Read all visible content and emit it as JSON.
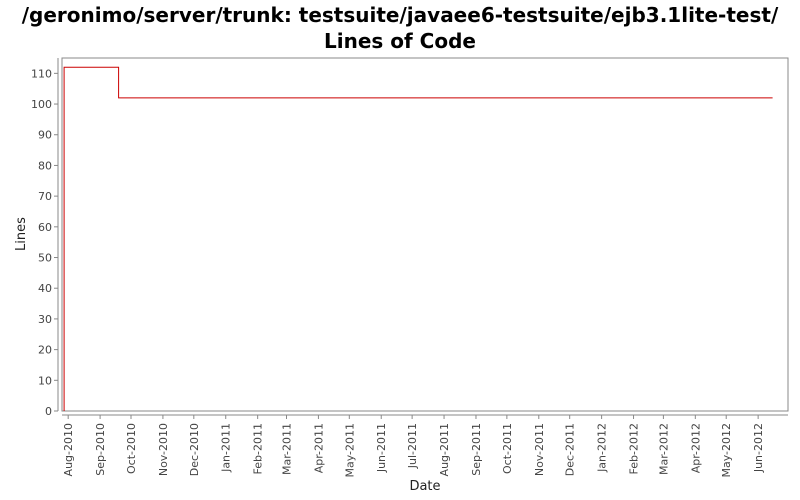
{
  "chart_data": {
    "type": "line",
    "title": "/geronimo/server/trunk: testsuite/javaee6-testsuite/ejb3.1lite-test/ Lines of Code",
    "xlabel": "Date",
    "ylabel": "Lines",
    "ylim": [
      0,
      115
    ],
    "y_ticks": [
      0,
      10,
      20,
      30,
      40,
      50,
      60,
      70,
      80,
      90,
      100,
      110
    ],
    "x_ticks": [
      "Aug-2010",
      "Sep-2010",
      "Oct-2010",
      "Nov-2010",
      "Dec-2010",
      "Jan-2011",
      "Feb-2011",
      "Mar-2011",
      "Apr-2011",
      "May-2011",
      "Jun-2011",
      "Jul-2011",
      "Aug-2011",
      "Sep-2011",
      "Oct-2011",
      "Nov-2011",
      "Dec-2011",
      "Jan-2012",
      "Feb-2012",
      "Mar-2012",
      "Apr-2012",
      "May-2012",
      "Jun-2012"
    ],
    "xlim": [
      "2010-07-26",
      "2012-06-30"
    ],
    "grid": false,
    "line_style": "step",
    "series": [
      {
        "color": "#cc0000",
        "points": [
          {
            "x": "2010-07-28",
            "y": 0
          },
          {
            "x": "2010-07-28",
            "y": 112
          },
          {
            "x": "2010-09-19",
            "y": 112
          },
          {
            "x": "2010-09-19",
            "y": 102
          },
          {
            "x": "2012-06-15",
            "y": 102
          }
        ]
      }
    ]
  }
}
